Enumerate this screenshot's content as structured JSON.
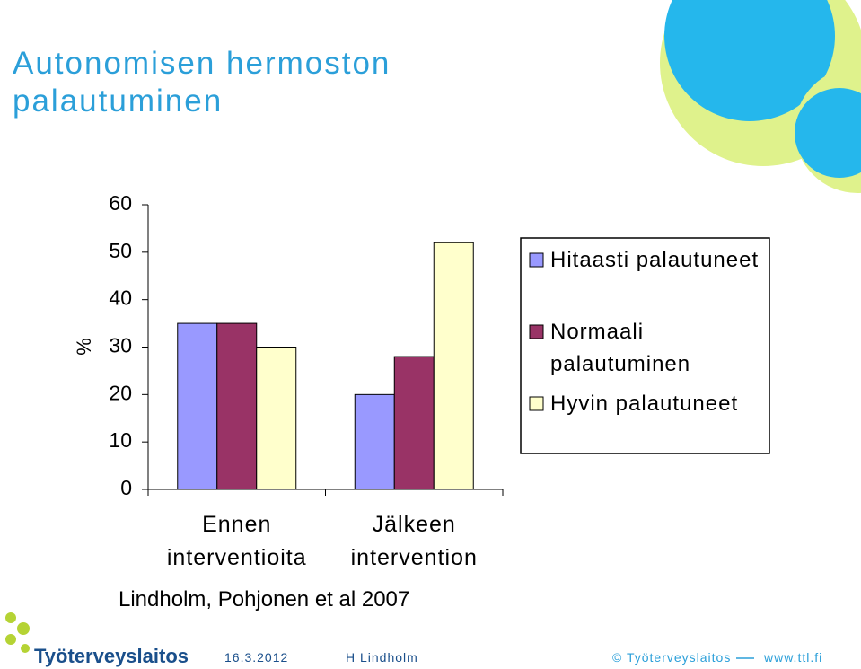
{
  "chart_data": {
    "type": "bar",
    "title": "Autonomisen hermoston palautuminen",
    "y_label": "%",
    "categories": [
      "Ennen interventioita",
      "Jälkeen intervention"
    ],
    "series": [
      {
        "name": "Hitaasti palautuneet",
        "color": "#9999ff",
        "values": [
          35,
          20
        ]
      },
      {
        "name": "Normaali palautuminen",
        "color": "#993366",
        "values": [
          35,
          28
        ]
      },
      {
        "name": "Hyvin palautuneet",
        "color": "#ffffcc",
        "values": [
          30,
          52
        ]
      }
    ],
    "ylim": [
      0,
      60
    ],
    "yticks": [
      0,
      10,
      20,
      30,
      40,
      50,
      60
    ],
    "grid": false,
    "legend": "right",
    "source": "Lindholm, Pohjonen et al 2007"
  },
  "footer": {
    "logo": "Työterveyslaitos",
    "date": "16.3.2012",
    "author": "H Lindholm",
    "copyright": "© Työterveyslaitos",
    "url": "www.ttl.fi"
  }
}
